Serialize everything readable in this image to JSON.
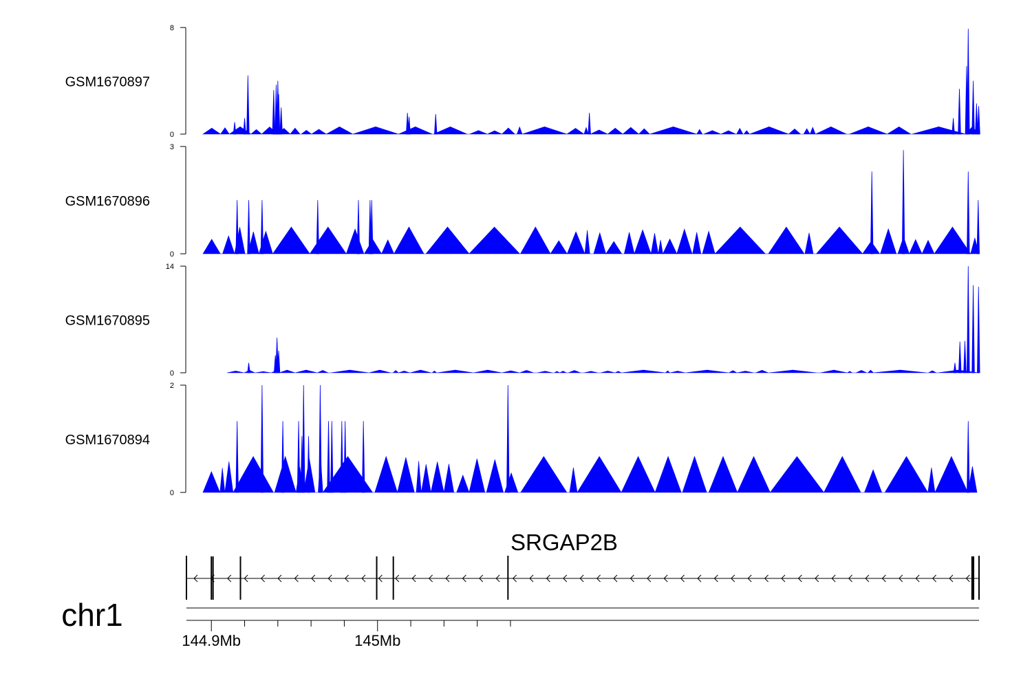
{
  "chart_data": {
    "type": "area",
    "title": "",
    "chromosome": "chr1",
    "x_unit": "Mb",
    "xlim": [
      144.885,
      145.362
    ],
    "x_ticks_labeled": [
      {
        "value": 144.9,
        "label": "144.9Mb"
      },
      {
        "value": 145.0,
        "label": "145Mb"
      }
    ],
    "x_ticks_minor": [
      144.92,
      144.94,
      144.96,
      144.98,
      145.02,
      145.04,
      145.06,
      145.08
    ],
    "tracks": [
      {
        "name": "GSM1670897",
        "ylim": [
          0,
          8
        ],
        "y_tick_labels": [
          "0",
          "8"
        ],
        "color": "#0000ff",
        "base_peak": 0.55,
        "peaks": [
          {
            "x": 144.922,
            "y": 4.4
          },
          {
            "x": 144.9375,
            "y": 3.3
          },
          {
            "x": 144.939,
            "y": 3.7
          },
          {
            "x": 144.94,
            "y": 4.0
          },
          {
            "x": 144.9405,
            "y": 3.0
          },
          {
            "x": 144.92,
            "y": 1.2
          },
          {
            "x": 144.914,
            "y": 0.9
          },
          {
            "x": 144.942,
            "y": 2.0
          },
          {
            "x": 145.018,
            "y": 1.6
          },
          {
            "x": 145.019,
            "y": 1.3
          },
          {
            "x": 145.035,
            "y": 1.5
          },
          {
            "x": 145.1275,
            "y": 1.6
          },
          {
            "x": 145.3465,
            "y": 1.2
          },
          {
            "x": 145.3502,
            "y": 3.4
          },
          {
            "x": 145.3545,
            "y": 5.1
          },
          {
            "x": 145.3555,
            "y": 7.9
          },
          {
            "x": 145.3585,
            "y": 4.0
          },
          {
            "x": 145.3605,
            "y": 2.3
          },
          {
            "x": 145.3618,
            "y": 2.1
          }
        ]
      },
      {
        "name": "GSM1670896",
        "ylim": [
          0,
          3
        ],
        "y_tick_labels": [
          "0",
          "3"
        ],
        "color": "#0000ff",
        "base_peak": 0.75,
        "peaks": [
          {
            "x": 144.9155,
            "y": 1.5
          },
          {
            "x": 144.9225,
            "y": 1.5
          },
          {
            "x": 144.9305,
            "y": 1.5
          },
          {
            "x": 144.964,
            "y": 1.5
          },
          {
            "x": 144.9885,
            "y": 1.5
          },
          {
            "x": 144.9955,
            "y": 1.5
          },
          {
            "x": 144.9965,
            "y": 1.5
          },
          {
            "x": 145.3165,
            "y": 2.9
          },
          {
            "x": 145.2975,
            "y": 2.3
          },
          {
            "x": 145.3555,
            "y": 2.3
          },
          {
            "x": 145.3615,
            "y": 1.5
          }
        ]
      },
      {
        "name": "GSM1670895",
        "ylim": [
          0,
          14
        ],
        "y_tick_labels": [
          "0",
          "14"
        ],
        "color": "#0000ff",
        "base_peak": 0.35,
        "peaks": [
          {
            "x": 144.9225,
            "y": 1.3
          },
          {
            "x": 144.9385,
            "y": 2.3
          },
          {
            "x": 144.9395,
            "y": 4.6
          },
          {
            "x": 144.9405,
            "y": 2.9
          },
          {
            "x": 145.3505,
            "y": 4.1
          },
          {
            "x": 145.3535,
            "y": 4.2
          },
          {
            "x": 145.3555,
            "y": 14.0
          },
          {
            "x": 145.3585,
            "y": 11.5
          },
          {
            "x": 145.3617,
            "y": 11.3
          },
          {
            "x": 145.3475,
            "y": 1.3
          }
        ]
      },
      {
        "name": "GSM1670894",
        "ylim": [
          0,
          2
        ],
        "y_tick_labels": [
          "0",
          "2"
        ],
        "color": "#0000ff",
        "base_peak": 0.67,
        "peaks": [
          {
            "x": 144.9155,
            "y": 1.33
          },
          {
            "x": 144.9305,
            "y": 2.0
          },
          {
            "x": 144.943,
            "y": 1.33
          },
          {
            "x": 144.9525,
            "y": 1.33
          },
          {
            "x": 144.9545,
            "y": 1.05
          },
          {
            "x": 144.9555,
            "y": 2.0
          },
          {
            "x": 144.9585,
            "y": 1.05
          },
          {
            "x": 144.9655,
            "y": 2.0
          },
          {
            "x": 144.9705,
            "y": 1.33
          },
          {
            "x": 144.9725,
            "y": 1.33
          },
          {
            "x": 144.9785,
            "y": 1.33
          },
          {
            "x": 144.9805,
            "y": 1.33
          },
          {
            "x": 144.9915,
            "y": 1.33
          },
          {
            "x": 145.0785,
            "y": 2.0
          },
          {
            "x": 145.3555,
            "y": 1.33
          }
        ]
      }
    ],
    "gene_track": {
      "gene_name": "SRGAP2B",
      "strand": "-",
      "start": 144.885,
      "end": 145.362,
      "exons": [
        144.885,
        144.9,
        144.901,
        144.9175,
        144.9995,
        145.0095,
        145.0785,
        145.358,
        145.3585,
        145.362
      ]
    }
  }
}
